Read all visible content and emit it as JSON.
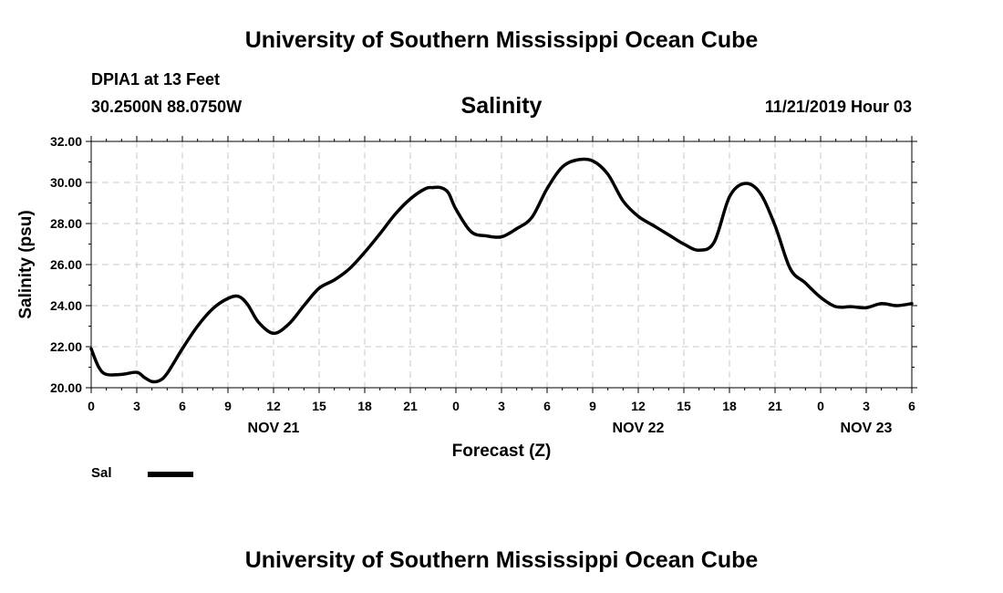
{
  "header": {
    "title": "University of Southern Mississippi Ocean Cube",
    "station": "DPIA1 at 13 Feet",
    "coords": "30.2500N 88.0750W",
    "chart_title": "Salinity",
    "datetime": "11/21/2019 Hour 03"
  },
  "footer": {
    "title": "University of Southern Mississippi Ocean Cube"
  },
  "legend": {
    "label": "Sal",
    "color": "#000000"
  },
  "chart_data": {
    "type": "line",
    "title": "Salinity",
    "xlabel": "Forecast (Z)",
    "ylabel": "Salinity (psu)",
    "ylim": [
      20,
      32
    ],
    "xlim": [
      0,
      54
    ],
    "x_unit": "hours from NOV 21 00Z",
    "yticks": [
      "20.00",
      "22.00",
      "24.00",
      "26.00",
      "28.00",
      "30.00",
      "32.00"
    ],
    "xticks": [
      "0",
      "3",
      "6",
      "9",
      "12",
      "15",
      "18",
      "21",
      "0",
      "3",
      "6",
      "9",
      "12",
      "15",
      "18",
      "21",
      "0",
      "3",
      "6"
    ],
    "day_labels": [
      {
        "label": "NOV 21",
        "x": 12
      },
      {
        "label": "NOV 22",
        "x": 36
      },
      {
        "label": "NOV 23",
        "x": 51
      }
    ],
    "grid": true,
    "series": [
      {
        "name": "Sal",
        "x": [
          0,
          0.5,
          1,
          2,
          3,
          3.5,
          4,
          4.5,
          5,
          6,
          7,
          8,
          9,
          9.7,
          10.3,
          11,
          12,
          13,
          14,
          15,
          16,
          17,
          18,
          19,
          20,
          21,
          22,
          22.5,
          23,
          23.5,
          24,
          25,
          26,
          27,
          28,
          29,
          30,
          31,
          32,
          33,
          34,
          35,
          36,
          37,
          38,
          39,
          40,
          41,
          42,
          43,
          44,
          45,
          46,
          47,
          48,
          49,
          50,
          51,
          52,
          53,
          54
        ],
        "y": [
          21.9,
          21.0,
          20.65,
          20.65,
          20.75,
          20.5,
          20.3,
          20.35,
          20.7,
          21.9,
          23.0,
          23.85,
          24.35,
          24.45,
          24.05,
          23.2,
          22.65,
          23.1,
          24.0,
          24.85,
          25.25,
          25.8,
          26.6,
          27.5,
          28.45,
          29.2,
          29.7,
          29.75,
          29.75,
          29.5,
          28.7,
          27.6,
          27.4,
          27.35,
          27.75,
          28.3,
          29.7,
          30.75,
          31.1,
          31.05,
          30.4,
          29.1,
          28.35,
          27.9,
          27.45,
          27.0,
          26.7,
          27.1,
          29.3,
          29.95,
          29.5,
          27.9,
          25.8,
          25.1,
          24.4,
          23.95,
          23.95,
          23.9,
          24.1,
          24.0,
          24.1
        ]
      }
    ]
  }
}
